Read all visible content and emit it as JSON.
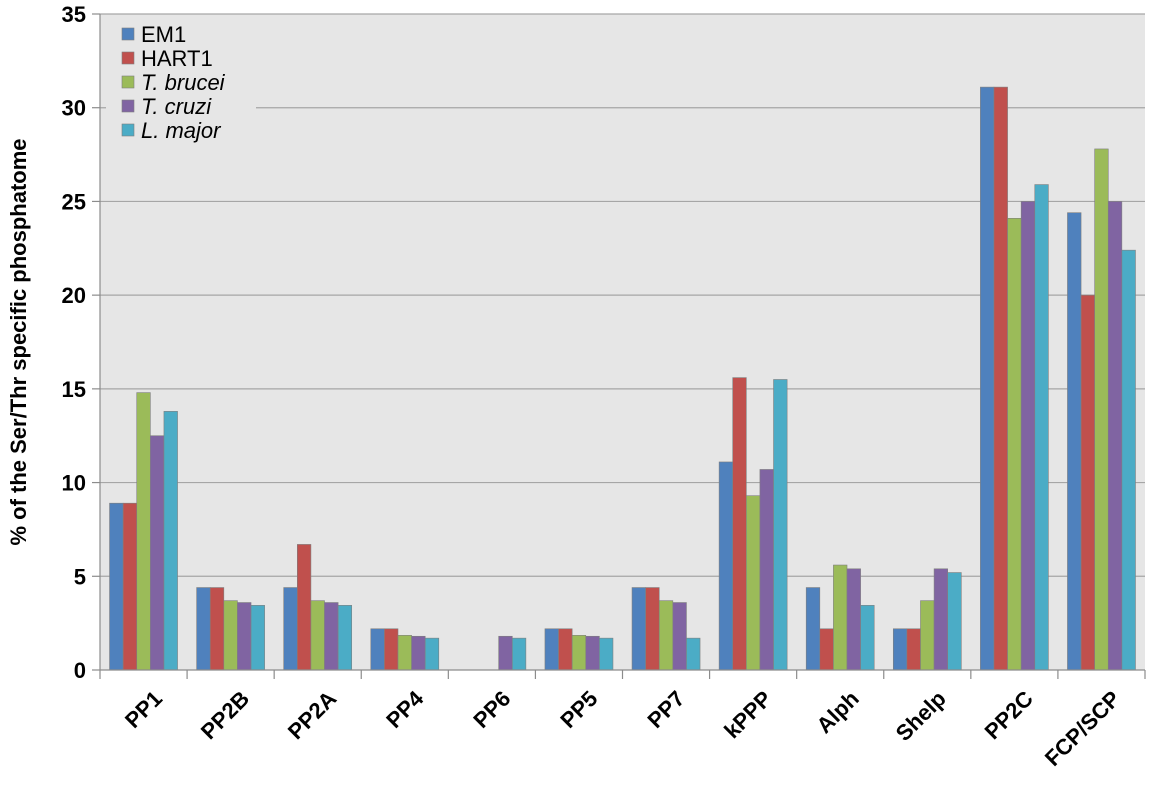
{
  "chart_data": {
    "type": "bar",
    "title": "",
    "xlabel": "",
    "ylabel": "% of the Ser/Thr specific phosphatome",
    "ylim": [
      0,
      35
    ],
    "yticks": [
      0,
      5,
      10,
      15,
      20,
      25,
      30,
      35
    ],
    "grid": true,
    "legend_position": "top-left",
    "categories": [
      "PP1",
      "PP2B",
      "PP2A",
      "PP4",
      "PP6",
      "PP5",
      "PP7",
      "kPPP",
      "Alph",
      "Shelp",
      "PP2C",
      "FCP/SCP"
    ],
    "series": [
      {
        "name": "EM1",
        "italic": false,
        "color": "#4F81BD",
        "values": [
          8.9,
          4.4,
          4.4,
          2.2,
          0,
          2.2,
          4.4,
          11.1,
          4.4,
          2.2,
          31.1,
          24.4
        ]
      },
      {
        "name": "HART1",
        "italic": false,
        "color": "#C0504D",
        "values": [
          8.9,
          4.4,
          6.7,
          2.2,
          0,
          2.2,
          4.4,
          15.6,
          2.2,
          2.2,
          31.1,
          20.0
        ]
      },
      {
        "name": "T. brucei",
        "italic": true,
        "color": "#9BBB59",
        "values": [
          14.8,
          3.7,
          3.7,
          1.85,
          0,
          1.85,
          3.7,
          9.3,
          5.6,
          3.7,
          24.1,
          27.8
        ]
      },
      {
        "name": "T. cruzi",
        "italic": true,
        "color": "#8064A2",
        "values": [
          12.5,
          3.6,
          3.6,
          1.8,
          1.8,
          1.8,
          3.6,
          10.7,
          5.4,
          5.4,
          25.0,
          25.0
        ]
      },
      {
        "name": "L. major",
        "italic": true,
        "color": "#4BACC6",
        "values": [
          13.8,
          3.45,
          3.45,
          1.7,
          1.7,
          1.7,
          1.7,
          15.5,
          3.45,
          5.2,
          25.9,
          22.4
        ]
      }
    ]
  }
}
